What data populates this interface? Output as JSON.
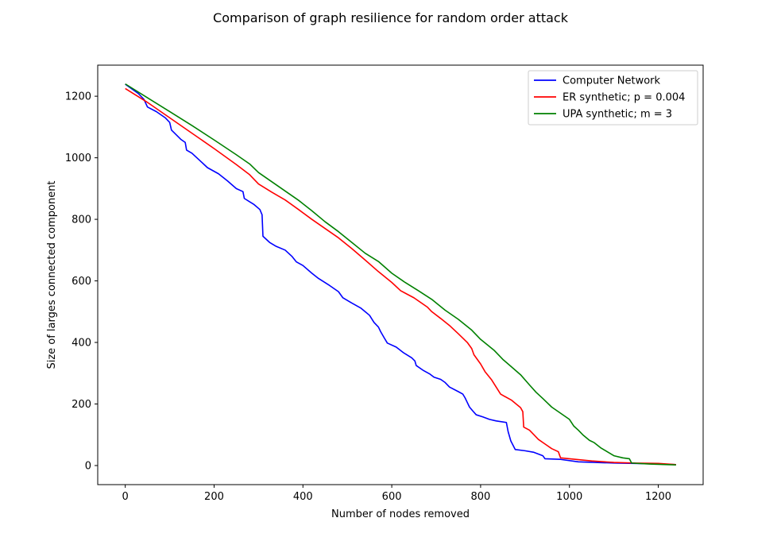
{
  "chart_data": {
    "type": "line",
    "title": "Comparison of graph resilience for random order attack",
    "xlabel": "Number of nodes removed",
    "ylabel": "Size of larges connected component",
    "xlim": [
      -62,
      1301
    ],
    "ylim": [
      -62,
      1301
    ],
    "xticks": [
      0,
      200,
      400,
      600,
      800,
      1000,
      1200
    ],
    "yticks": [
      0,
      200,
      400,
      600,
      800,
      1000,
      1200
    ],
    "grid": false,
    "legend_position": "top-right",
    "series": [
      {
        "name": "Computer Network",
        "color": "#0000ff",
        "points": [
          [
            0,
            1239
          ],
          [
            30,
            1208
          ],
          [
            42,
            1190
          ],
          [
            50,
            1165
          ],
          [
            70,
            1150
          ],
          [
            90,
            1130
          ],
          [
            100,
            1115
          ],
          [
            104,
            1090
          ],
          [
            125,
            1060
          ],
          [
            135,
            1050
          ],
          [
            138,
            1025
          ],
          [
            150,
            1015
          ],
          [
            165,
            995
          ],
          [
            185,
            968
          ],
          [
            210,
            948
          ],
          [
            230,
            925
          ],
          [
            250,
            900
          ],
          [
            265,
            890
          ],
          [
            268,
            868
          ],
          [
            290,
            848
          ],
          [
            303,
            832
          ],
          [
            308,
            815
          ],
          [
            310,
            745
          ],
          [
            325,
            725
          ],
          [
            340,
            712
          ],
          [
            360,
            700
          ],
          [
            375,
            680
          ],
          [
            385,
            662
          ],
          [
            400,
            650
          ],
          [
            420,
            625
          ],
          [
            435,
            608
          ],
          [
            460,
            585
          ],
          [
            480,
            565
          ],
          [
            490,
            545
          ],
          [
            510,
            528
          ],
          [
            530,
            512
          ],
          [
            540,
            500
          ],
          [
            550,
            488
          ],
          [
            560,
            465
          ],
          [
            570,
            450
          ],
          [
            575,
            435
          ],
          [
            583,
            415
          ],
          [
            590,
            398
          ],
          [
            610,
            385
          ],
          [
            625,
            368
          ],
          [
            645,
            350
          ],
          [
            652,
            340
          ],
          [
            655,
            325
          ],
          [
            670,
            310
          ],
          [
            685,
            298
          ],
          [
            695,
            287
          ],
          [
            710,
            280
          ],
          [
            720,
            270
          ],
          [
            730,
            255
          ],
          [
            750,
            240
          ],
          [
            760,
            232
          ],
          [
            765,
            220
          ],
          [
            770,
            205
          ],
          [
            775,
            190
          ],
          [
            782,
            178
          ],
          [
            790,
            165
          ],
          [
            805,
            158
          ],
          [
            820,
            150
          ],
          [
            835,
            145
          ],
          [
            858,
            140
          ],
          [
            862,
            110
          ],
          [
            868,
            80
          ],
          [
            878,
            52
          ],
          [
            900,
            48
          ],
          [
            920,
            43
          ],
          [
            940,
            32
          ],
          [
            945,
            22
          ],
          [
            980,
            20
          ],
          [
            1020,
            12
          ],
          [
            1100,
            8
          ],
          [
            1180,
            6
          ],
          [
            1200,
            5
          ],
          [
            1239,
            3
          ]
        ]
      },
      {
        "name": "ER synthetic; p = 0.004",
        "color": "#ff0000",
        "points": [
          [
            0,
            1225
          ],
          [
            50,
            1180
          ],
          [
            100,
            1130
          ],
          [
            150,
            1080
          ],
          [
            200,
            1030
          ],
          [
            250,
            978
          ],
          [
            280,
            945
          ],
          [
            300,
            915
          ],
          [
            330,
            888
          ],
          [
            360,
            863
          ],
          [
            390,
            832
          ],
          [
            420,
            800
          ],
          [
            450,
            770
          ],
          [
            480,
            740
          ],
          [
            510,
            705
          ],
          [
            540,
            668
          ],
          [
            570,
            630
          ],
          [
            600,
            595
          ],
          [
            620,
            568
          ],
          [
            650,
            545
          ],
          [
            680,
            515
          ],
          [
            690,
            500
          ],
          [
            710,
            478
          ],
          [
            730,
            455
          ],
          [
            750,
            428
          ],
          [
            770,
            400
          ],
          [
            780,
            380
          ],
          [
            785,
            360
          ],
          [
            800,
            330
          ],
          [
            810,
            305
          ],
          [
            825,
            278
          ],
          [
            835,
            255
          ],
          [
            845,
            232
          ],
          [
            870,
            212
          ],
          [
            890,
            188
          ],
          [
            895,
            175
          ],
          [
            897,
            125
          ],
          [
            910,
            115
          ],
          [
            920,
            100
          ],
          [
            930,
            85
          ],
          [
            945,
            70
          ],
          [
            960,
            55
          ],
          [
            975,
            45
          ],
          [
            980,
            25
          ],
          [
            1000,
            22
          ],
          [
            1050,
            15
          ],
          [
            1100,
            10
          ],
          [
            1150,
            8
          ],
          [
            1200,
            7
          ],
          [
            1240,
            3
          ]
        ]
      },
      {
        "name": "UPA synthetic; m = 3",
        "color": "#008000",
        "points": [
          [
            0,
            1240
          ],
          [
            50,
            1195
          ],
          [
            100,
            1150
          ],
          [
            150,
            1105
          ],
          [
            200,
            1058
          ],
          [
            250,
            1010
          ],
          [
            280,
            980
          ],
          [
            300,
            952
          ],
          [
            330,
            922
          ],
          [
            360,
            892
          ],
          [
            390,
            862
          ],
          [
            420,
            828
          ],
          [
            450,
            792
          ],
          [
            480,
            760
          ],
          [
            510,
            725
          ],
          [
            540,
            690
          ],
          [
            570,
            663
          ],
          [
            600,
            625
          ],
          [
            630,
            595
          ],
          [
            660,
            568
          ],
          [
            690,
            540
          ],
          [
            720,
            505
          ],
          [
            750,
            475
          ],
          [
            780,
            440
          ],
          [
            800,
            410
          ],
          [
            830,
            375
          ],
          [
            850,
            345
          ],
          [
            870,
            320
          ],
          [
            890,
            295
          ],
          [
            910,
            262
          ],
          [
            925,
            238
          ],
          [
            940,
            218
          ],
          [
            960,
            190
          ],
          [
            980,
            170
          ],
          [
            1000,
            150
          ],
          [
            1010,
            128
          ],
          [
            1020,
            115
          ],
          [
            1030,
            100
          ],
          [
            1045,
            82
          ],
          [
            1055,
            75
          ],
          [
            1070,
            58
          ],
          [
            1085,
            45
          ],
          [
            1100,
            32
          ],
          [
            1120,
            25
          ],
          [
            1135,
            22
          ],
          [
            1140,
            8
          ],
          [
            1180,
            5
          ],
          [
            1240,
            2
          ]
        ]
      }
    ]
  }
}
